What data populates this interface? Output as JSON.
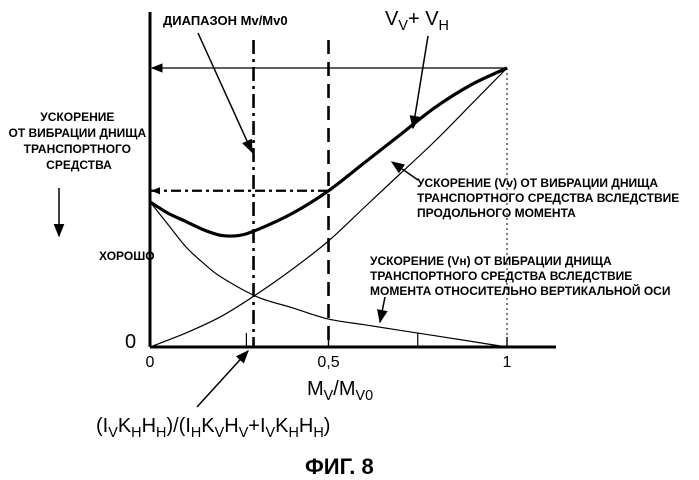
{
  "chart_data": {
    "type": "line",
    "title": "ДИАПАЗОН Mv/Mv0",
    "ylabel": "УСКОРЕНИЕ ОТ ВИБРАЦИИ ДНИЩА ТРАНСПОРТНОГО СРЕДСТВА",
    "ylabel_lines": [
      "УСКОРЕНИЕ",
      "ОТ ВИБРАЦИИ ДНИЩА",
      "ТРАНСПОРТНОГО",
      "СРЕДСТВА"
    ],
    "good_label": "ХОРОШО",
    "origin_label": "0",
    "xlim": [
      0,
      1
    ],
    "ylim": [
      0,
      1
    ],
    "x_ticks": [
      {
        "value": 0,
        "label": "0"
      },
      {
        "value": 0.5,
        "label": "0,5"
      },
      {
        "value": 1,
        "label": "1"
      }
    ],
    "grid": false,
    "series": [
      {
        "name": "V_V + V_H",
        "label_parts": {
          "a": "V",
          "a_sub": "V",
          "op": "+ V",
          "b_sub": "H"
        },
        "style": "thick",
        "x": [
          0,
          0.05,
          0.1,
          0.15,
          0.2,
          0.25,
          0.3,
          0.4,
          0.5,
          0.6,
          0.7,
          0.8,
          0.9,
          1.0
        ],
        "y": [
          0.52,
          0.48,
          0.45,
          0.42,
          0.4,
          0.4,
          0.42,
          0.48,
          0.56,
          0.66,
          0.76,
          0.86,
          0.94,
          1.0
        ]
      },
      {
        "name": "Vv",
        "style": "thin",
        "x": [
          0,
          0.1,
          0.2,
          0.3,
          0.4,
          0.5,
          0.6,
          0.7,
          0.8,
          0.9,
          1.0
        ],
        "y": [
          0,
          0.05,
          0.11,
          0.19,
          0.28,
          0.38,
          0.5,
          0.62,
          0.74,
          0.87,
          1.0
        ]
      },
      {
        "name": "Vн",
        "style": "thin",
        "x": [
          0,
          0.05,
          0.1,
          0.15,
          0.2,
          0.3,
          0.4,
          0.5,
          0.6,
          0.7,
          0.8,
          0.9,
          1.0
        ],
        "y": [
          0.52,
          0.44,
          0.36,
          0.3,
          0.25,
          0.18,
          0.14,
          0.1,
          0.08,
          0.06,
          0.04,
          0.02,
          0
        ]
      }
    ],
    "reference_lines": {
      "range_lines_x": [
        0.29,
        0.5
      ],
      "minimum_marker": {
        "x": 0.29,
        "y": 0.4
      },
      "horizontal_dashdot_y": 0.56,
      "top_arrow_y": 1.0,
      "right_dotted_x": 1.0
    },
    "annotations": {
      "vv": [
        "УСКОРЕНИЕ (Vv) ОТ ВИБРАЦИИ ДНИЩА",
        "ТРАНСПОРТНОГО СРЕДСТВА ВСЛЕДСТВИЕ",
        "ПРОДОЛЬНОГО МОМЕНТА"
      ],
      "vh": [
        "УСКОРЕНИЕ (Vн) ОТ ВИБРАЦИИ ДНИЩА",
        "ТРАНСПОРТНОГО СРЕДСТВА ВСЛЕДСТВИЕ",
        " МОМЕНТА ОТНОСИТЕЛЬНО ВЕРТИКАЛЬНОЙ ОСИ"
      ]
    },
    "xlabel_parts": {
      "m1": "M",
      "s1": "V",
      "slash": "/",
      "m2": "M",
      "s2": "V0"
    },
    "formula_parts": {
      "p1": "(I",
      "s1": "V",
      "p2": "K",
      "s2": "H",
      "p3": "H",
      "s3": "H",
      "p4": ")/(I",
      "s4": "H",
      "p5": "K",
      "s5": "V",
      "p6": "H",
      "s6": "V",
      "p7": "+I",
      "s7": "V",
      "p8": "K",
      "s8": "H",
      "p9": "H",
      "s9": "H",
      "p10": ")"
    },
    "figure_label": "ФИГ. 8"
  }
}
